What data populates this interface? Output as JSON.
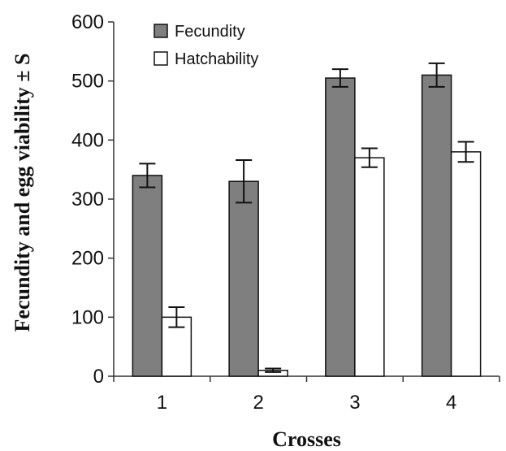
{
  "chart_data": {
    "type": "bar",
    "title": "",
    "xlabel": "Crosses",
    "ylabel": "Fecundity and egg viability ± S",
    "categories": [
      "1",
      "2",
      "3",
      "4"
    ],
    "ylim": [
      0,
      600
    ],
    "yticks": [
      "0",
      "100",
      "200",
      "300",
      "400",
      "500",
      "600"
    ],
    "grid": false,
    "legend_position": "top-left",
    "series": [
      {
        "name": "Fecundity",
        "color": "#7f7f7f",
        "values": [
          340,
          330,
          505,
          510
        ],
        "error": [
          20,
          36,
          15,
          20
        ]
      },
      {
        "name": "Hatchability",
        "color": "#ffffff",
        "values": [
          100,
          10,
          370,
          380
        ],
        "error": [
          17,
          3,
          16,
          17
        ]
      }
    ]
  }
}
